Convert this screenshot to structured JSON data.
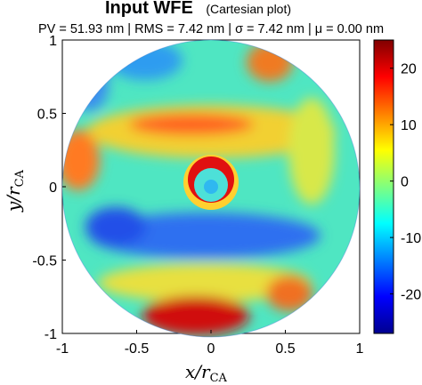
{
  "chart_data": {
    "type": "heatmap",
    "title": "Input WFE",
    "title_note": "(Cartesian plot)",
    "subtitle": "PV = 51.93 nm | RMS = 7.42 nm | σ = 7.42 nm | μ = 0.00 nm",
    "xlabel": "x/r",
    "xlabel_sub": "CA",
    "ylabel": "y/r",
    "ylabel_sub": "CA",
    "xlim": [
      -1,
      1
    ],
    "ylim": [
      -1,
      1
    ],
    "xticks": [
      "-1",
      "-0.5",
      "0",
      "0.5",
      "1"
    ],
    "yticks": [
      "1",
      "0.5",
      "0",
      "-0.5",
      "-1"
    ],
    "colorbar": {
      "range": [
        -27,
        25
      ],
      "ticks": [
        "20",
        "10",
        "0",
        "-10",
        "-20"
      ],
      "tick_values": [
        20,
        10,
        0,
        -10,
        -20
      ],
      "colormap": "jet"
    },
    "aperture": "circular, radius 1",
    "features": [
      {
        "label": "central ring",
        "x": 0,
        "y": 0.13,
        "value": 24
      },
      {
        "label": "lower edge",
        "x": -0.1,
        "y": -0.85,
        "value": 22
      },
      {
        "label": "upper arc",
        "x": 0,
        "y": 0.45,
        "value": 12
      },
      {
        "label": "lower arc",
        "x": 0,
        "y": -0.35,
        "value": -12
      },
      {
        "label": "upper-left edge",
        "x": -0.45,
        "y": 0.82,
        "value": -10
      },
      {
        "label": "left edge",
        "x": -0.9,
        "y": 0.25,
        "value": 13
      },
      {
        "label": "upper-right edge",
        "x": 0.4,
        "y": 0.82,
        "value": 12
      }
    ]
  }
}
